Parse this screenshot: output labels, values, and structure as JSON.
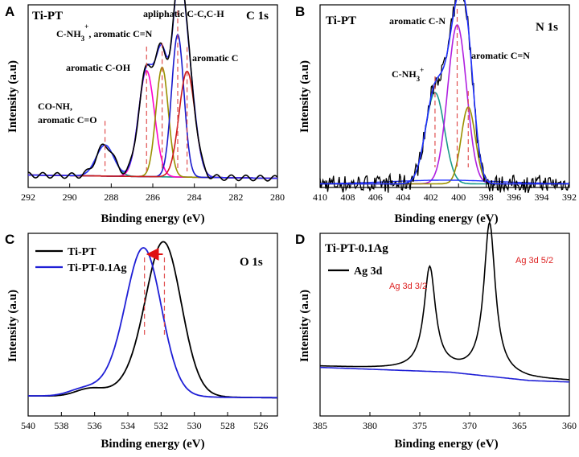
{
  "chart_data": [
    {
      "panel": "A",
      "type": "line",
      "sample": "Ti-PT",
      "region": "C 1s",
      "xlabel": "Binding energy (eV)",
      "ylabel": "Intensity (a.u)",
      "xlim": [
        292,
        280
      ],
      "ylim": [
        0,
        1.0
      ],
      "xticks": [
        292,
        290,
        288,
        286,
        284,
        282,
        280
      ],
      "baseline": 0.05,
      "peaks": [
        {
          "name": "CO-NH, aromatic C=O",
          "center": 288.3,
          "height": 0.17,
          "fwhm": 1.0,
          "color": "#1a9a8a"
        },
        {
          "name": "aromatic C-OH",
          "center": 286.3,
          "height": 0.58,
          "fwhm": 0.9,
          "color": "#ff00cc"
        },
        {
          "name": "C-NH3+, aromatic C=N",
          "center": 285.55,
          "height": 0.6,
          "fwhm": 0.7,
          "color": "#9a9000"
        },
        {
          "name": "apliphatic C-C,C-H",
          "center": 284.8,
          "height": 0.78,
          "fwhm": 0.7,
          "color": "#1a1acc"
        },
        {
          "name": "aromatic C",
          "center": 284.35,
          "height": 0.58,
          "fwhm": 0.9,
          "color": "#cc1a1a"
        }
      ],
      "annotations": [
        {
          "text": "C-NH",
          "sub": "3",
          "sup": "+",
          "tail": ", aromatic C=N"
        },
        {
          "text": "aromatic C-OH"
        },
        {
          "text": "apliphatic C-C,C-H"
        },
        {
          "text": "aromatic C"
        },
        {
          "text": "CO-NH,"
        },
        {
          "text": "aromatic C=O"
        }
      ]
    },
    {
      "panel": "B",
      "type": "line",
      "sample": "Ti-PT",
      "region": "N 1s",
      "xlabel": "Binding energy (eV)",
      "ylabel": "Intensity (a.u)",
      "xlim": [
        410,
        392
      ],
      "ylim": [
        0,
        1.0
      ],
      "xticks": [
        410,
        408,
        406,
        404,
        402,
        400,
        398,
        396,
        394,
        392
      ],
      "baseline": 0.02,
      "peaks": [
        {
          "name": "C-NH3+",
          "center": 401.7,
          "height": 0.5,
          "fwhm": 1.6,
          "color": "#1a9a8a"
        },
        {
          "name": "aromatic C-N",
          "center": 400.1,
          "height": 0.87,
          "fwhm": 1.6,
          "color": "#b020e0"
        },
        {
          "name": "aromatic C=N",
          "center": 399.3,
          "height": 0.42,
          "fwhm": 1.2,
          "color": "#9a9000"
        }
      ],
      "annotations": [
        {
          "text": "aromatic C-N"
        },
        {
          "text": "aromatic C=N"
        },
        {
          "text": "C-NH",
          "sub": "3",
          "sup": "+"
        }
      ]
    },
    {
      "panel": "C",
      "type": "line",
      "region": "O 1s",
      "xlabel": "Binding energy (eV)",
      "ylabel": "Intensity (a.u)",
      "xlim": [
        540,
        525
      ],
      "ylim": [
        0,
        1.0
      ],
      "xticks": [
        540,
        538,
        536,
        534,
        532,
        530,
        528,
        526
      ],
      "series": [
        {
          "name": "Ti-PT",
          "color": "#000000",
          "peak_center": 531.8,
          "peak_height": 0.75,
          "side_center": 536.3,
          "side_height": 0.04
        },
        {
          "name": "Ti-PT-0.1Ag",
          "color": "#1f1fd6",
          "peak_center": 533.0,
          "peak_height": 0.72,
          "side_center": 536.8,
          "side_height": 0.03
        }
      ],
      "shift_arrow": {
        "from": 531.8,
        "to": 533.0
      }
    },
    {
      "panel": "D",
      "type": "line",
      "sample": "Ti-PT-0.1Ag",
      "xlabel": "Binding energy (eV)",
      "ylabel": "Intensity (a.u)",
      "xlim": [
        385,
        360
      ],
      "ylim": [
        0,
        1.0
      ],
      "xticks": [
        385,
        380,
        375,
        370,
        365,
        360
      ],
      "series": [
        {
          "name": "Ag 3d",
          "color": "#000000"
        }
      ],
      "peaks": [
        {
          "name": "Ag 3d 3/2",
          "center": 374.0,
          "height": 0.56
        },
        {
          "name": "Ag 3d 5/2",
          "center": 368.0,
          "height": 0.83
        }
      ],
      "peak_label_color": "#dd2222"
    }
  ]
}
